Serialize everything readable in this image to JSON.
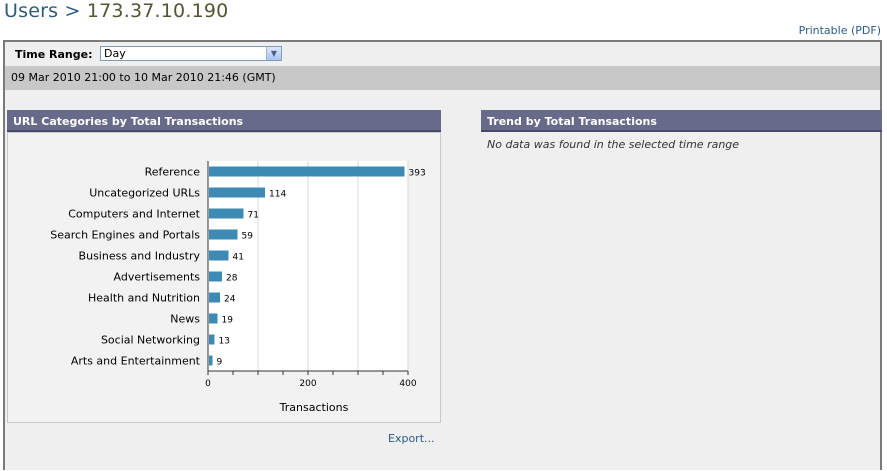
{
  "header": {
    "section": "Users",
    "separator": ">",
    "host": "173.37.10.190",
    "printable": "Printable (PDF)"
  },
  "filters": {
    "time_range_label": "Time Range:",
    "time_range_value": "Day",
    "date_range": "09 Mar 2010 21:00 to 10 Mar 2010 21:46 (GMT)"
  },
  "left_panel": {
    "title": "URL Categories by Total Transactions",
    "export": "Export..."
  },
  "right_panel": {
    "title": "Trend by Total Transactions",
    "empty_message": "No data was found in the selected time range"
  },
  "chart_data": {
    "type": "bar",
    "orientation": "horizontal",
    "categories": [
      "Reference",
      "Uncategorized URLs",
      "Computers and Internet",
      "Search Engines and Portals",
      "Business and Industry",
      "Advertisements",
      "Health and Nutrition",
      "News",
      "Social Networking",
      "Arts and Entertainment"
    ],
    "values": [
      393,
      114,
      71,
      59,
      41,
      28,
      24,
      19,
      13,
      9
    ],
    "xlabel": "Transactions",
    "xticks": [
      "0",
      "200",
      "400"
    ],
    "xlim": [
      0,
      400
    ],
    "bar_color": "#3d8bb5",
    "grid": true
  }
}
